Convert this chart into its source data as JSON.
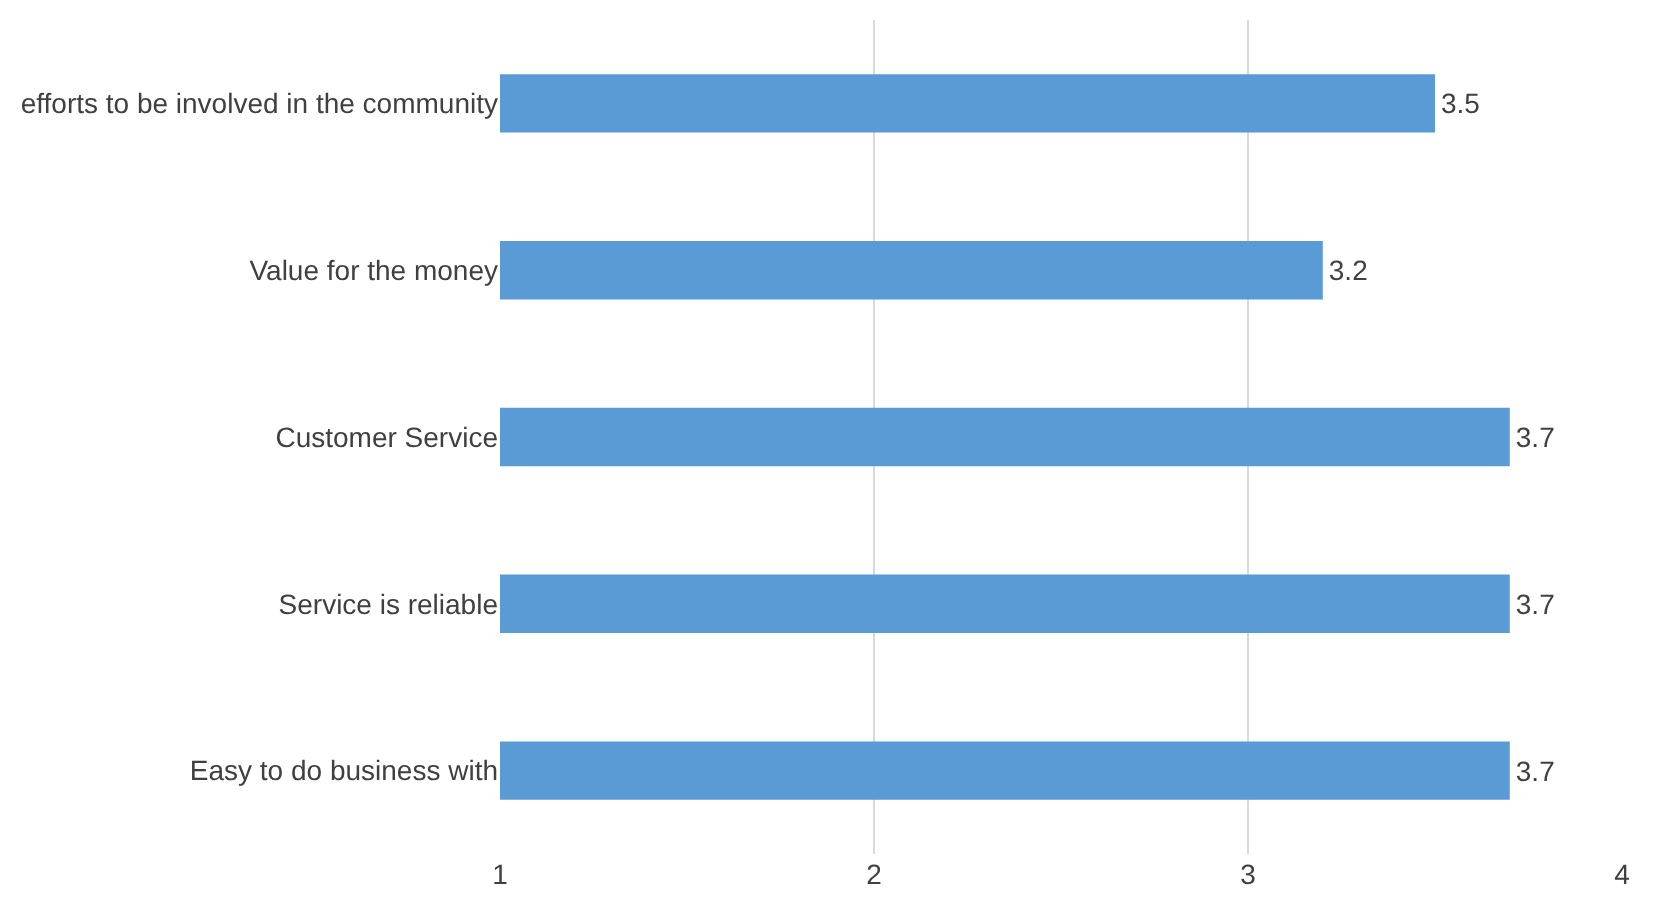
{
  "chart_data": {
    "type": "bar",
    "orientation": "horizontal",
    "categories": [
      "efforts to be involved in the community",
      "Value for the money",
      "Customer Service",
      "Service is reliable",
      "Easy to do business with"
    ],
    "values": [
      3.5,
      3.2,
      3.7,
      3.7,
      3.7
    ],
    "color": "#5b9bd5",
    "xlim": [
      1,
      4
    ],
    "xticks": [
      1,
      2,
      3,
      4
    ],
    "grid": "x",
    "data_labels": true
  }
}
